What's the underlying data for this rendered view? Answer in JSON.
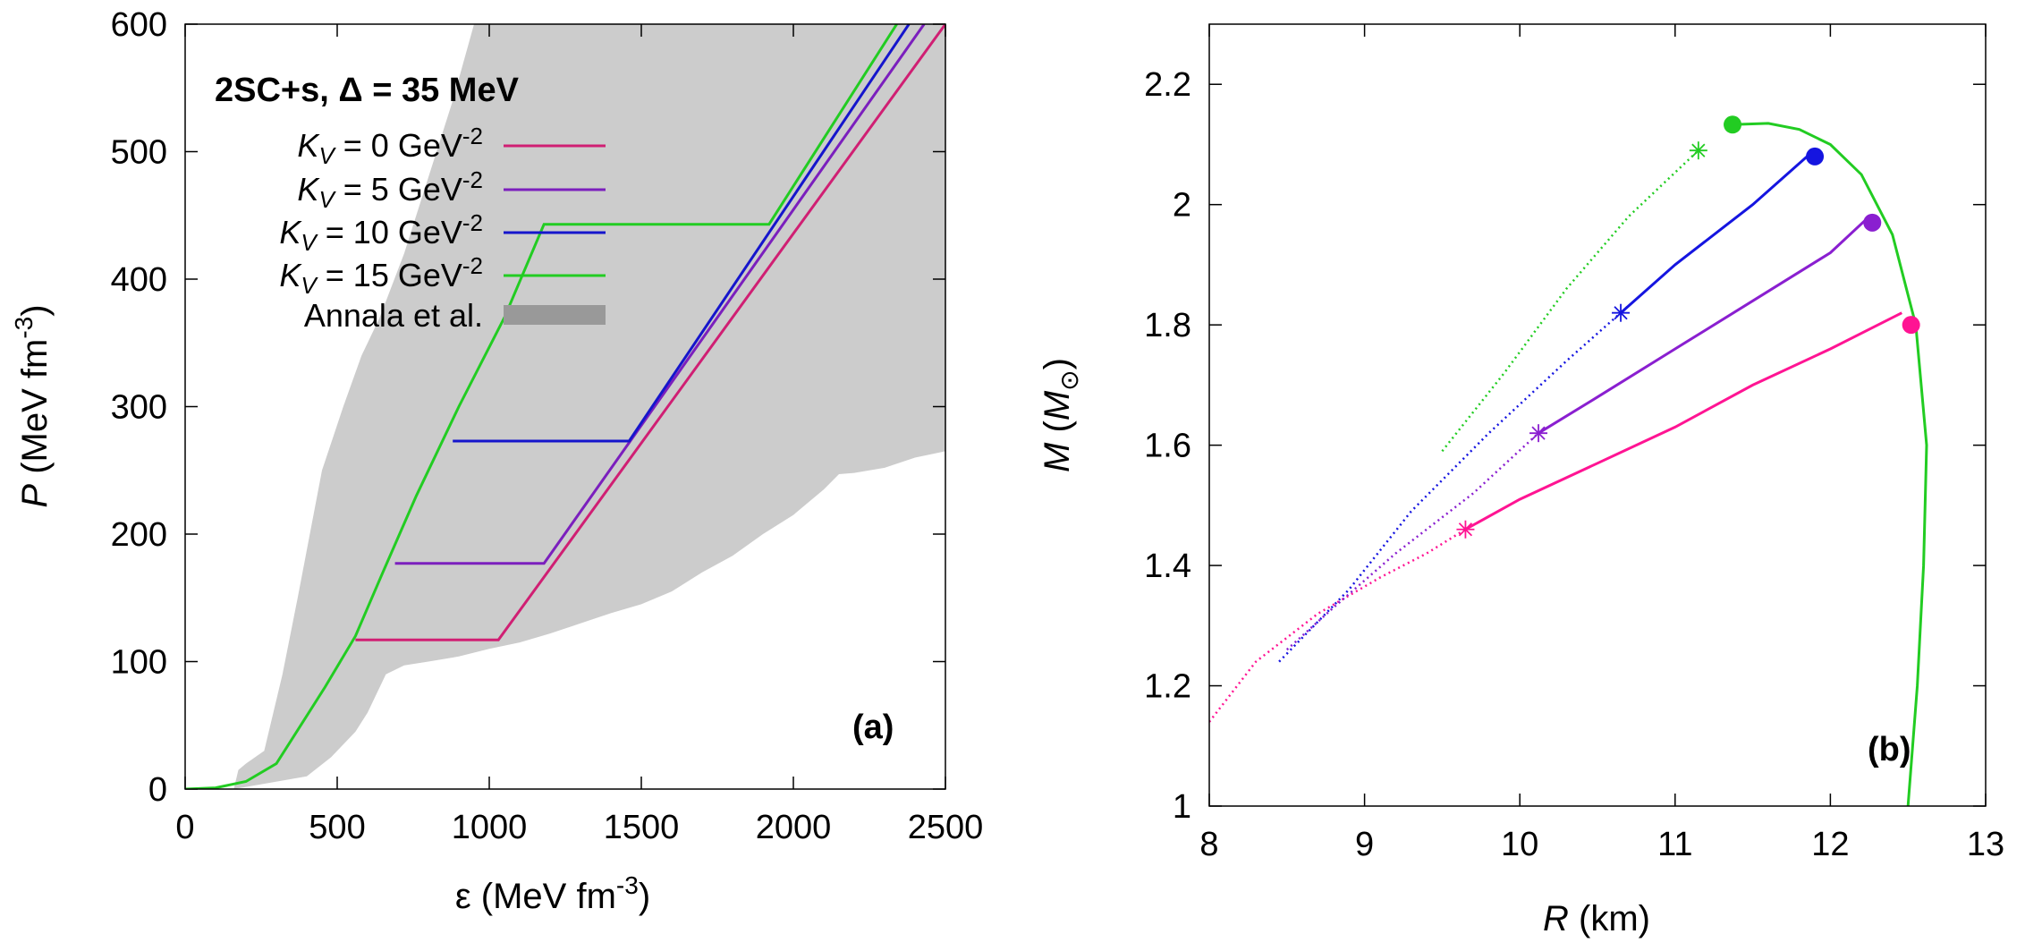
{
  "chart_data": [
    {
      "type": "line",
      "panel_label": "(a)",
      "title": "2SC+s,  Δ = 35 MeV",
      "xlabel": "ε (MeV fm-3)",
      "ylabel": "P (MeV fm-3)",
      "xlim": [
        0,
        2500
      ],
      "ylim": [
        0,
        600
      ],
      "xticks": [
        0,
        500,
        1000,
        1500,
        2000,
        2500
      ],
      "yticks": [
        0,
        100,
        200,
        300,
        400,
        500,
        600
      ],
      "band": {
        "name": "Annala et al.",
        "color": "#bbbbbb",
        "upper": [
          [
            160,
            0
          ],
          [
            175,
            15
          ],
          [
            200,
            20
          ],
          [
            260,
            30
          ],
          [
            290,
            60
          ],
          [
            320,
            90
          ],
          [
            370,
            150
          ],
          [
            410,
            200
          ],
          [
            450,
            250
          ],
          [
            520,
            300
          ],
          [
            580,
            340
          ],
          [
            640,
            370
          ],
          [
            720,
            420
          ],
          [
            800,
            480
          ],
          [
            880,
            540
          ],
          [
            950,
            600
          ]
        ],
        "lower": [
          [
            160,
            0
          ],
          [
            400,
            10
          ],
          [
            480,
            25
          ],
          [
            520,
            35
          ],
          [
            560,
            45
          ],
          [
            600,
            60
          ],
          [
            640,
            80
          ],
          [
            660,
            90
          ],
          [
            720,
            97
          ],
          [
            800,
            100
          ],
          [
            900,
            104
          ],
          [
            1000,
            110
          ],
          [
            1100,
            115
          ],
          [
            1200,
            122
          ],
          [
            1300,
            130
          ],
          [
            1400,
            138
          ],
          [
            1500,
            145
          ],
          [
            1600,
            155
          ],
          [
            1700,
            170
          ],
          [
            1800,
            183
          ],
          [
            1900,
            200
          ],
          [
            2000,
            215
          ],
          [
            2100,
            235
          ],
          [
            2150,
            247
          ],
          [
            2200,
            248
          ],
          [
            2300,
            252
          ],
          [
            2400,
            260
          ],
          [
            2500,
            265
          ]
        ]
      },
      "series": [
        {
          "name": "K_V = 0 GeV^-2",
          "color": "#d01f73",
          "points": [
            [
              560,
              117
            ],
            [
              1030,
              117
            ],
            [
              2500,
              600
            ]
          ]
        },
        {
          "name": "K_V = 5 GeV^-2",
          "color": "#7b1fbd",
          "points": [
            [
              690,
              177
            ],
            [
              1180,
              177
            ],
            [
              2430,
              600
            ]
          ]
        },
        {
          "name": "K_V = 10 GeV^-2",
          "color": "#1515cc",
          "points": [
            [
              880,
              273
            ],
            [
              1460,
              273
            ],
            [
              2380,
              600
            ]
          ]
        },
        {
          "name": "K_V = 15 GeV^-2",
          "color": "#22cc22",
          "points": [
            [
              0,
              0
            ],
            [
              100,
              1
            ],
            [
              200,
              6
            ],
            [
              300,
              20
            ],
            [
              380,
              50
            ],
            [
              460,
              80
            ],
            [
              560,
              120
            ],
            [
              650,
              170
            ],
            [
              760,
              230
            ],
            [
              900,
              300
            ],
            [
              1050,
              370
            ],
            [
              1180,
              443
            ],
            [
              1920,
              443
            ],
            [
              2340,
              600
            ]
          ]
        }
      ],
      "legend": [
        {
          "prefix": "K",
          "sub": "V",
          "mid": " = 0 GeV",
          "sup": "-2"
        },
        {
          "prefix": "K",
          "sub": "V",
          "mid": " = 5 GeV",
          "sup": "-2"
        },
        {
          "prefix": "K",
          "sub": "V",
          "mid": " = 10 GeV",
          "sup": "-2"
        },
        {
          "prefix": "K",
          "sub": "V",
          "mid": " = 15 GeV",
          "sup": "-2"
        },
        {
          "prefix": "Annala et al.",
          "sub": "",
          "mid": "",
          "sup": ""
        }
      ]
    },
    {
      "type": "line",
      "panel_label": "(b)",
      "xlabel": "R (km)",
      "ylabel": "M (M⊙)",
      "xlim": [
        8,
        13
      ],
      "ylim": [
        1,
        2.3
      ],
      "xticks": [
        8,
        9,
        10,
        11,
        12,
        13
      ],
      "yticks": [
        1,
        1.2,
        1.4,
        1.6,
        1.8,
        2,
        2.2
      ],
      "hadronic_branch": {
        "color": "#22cc22",
        "points": [
          [
            12.5,
            1.0
          ],
          [
            12.56,
            1.2
          ],
          [
            12.6,
            1.4
          ],
          [
            12.62,
            1.6
          ],
          [
            12.55,
            1.8
          ],
          [
            12.4,
            1.95
          ],
          [
            12.2,
            2.05
          ],
          [
            12.0,
            2.1
          ],
          [
            11.8,
            2.125
          ],
          [
            11.6,
            2.135
          ],
          [
            11.37,
            2.133
          ]
        ]
      },
      "series": [
        {
          "name": "K_V = 0",
          "color": "#ff1493",
          "solid": [
            [
              9.65,
              1.46
            ],
            [
              10.0,
              1.51
            ],
            [
              10.5,
              1.57
            ],
            [
              11.0,
              1.63
            ],
            [
              11.5,
              1.7
            ],
            [
              12.0,
              1.76
            ],
            [
              12.46,
              1.82
            ]
          ],
          "dotted": [
            [
              8.0,
              1.14
            ],
            [
              8.3,
              1.24
            ],
            [
              8.7,
              1.32
            ],
            [
              9.1,
              1.38
            ],
            [
              9.4,
              1.42
            ],
            [
              9.65,
              1.46
            ]
          ],
          "star": [
            9.65,
            1.46
          ],
          "dot": [
            12.52,
            1.8
          ]
        },
        {
          "name": "K_V = 5",
          "color": "#8a1fd0",
          "solid": [
            [
              10.12,
              1.62
            ],
            [
              10.5,
              1.68
            ],
            [
              11.0,
              1.76
            ],
            [
              11.5,
              1.84
            ],
            [
              12.0,
              1.92
            ],
            [
              12.25,
              1.98
            ]
          ],
          "dotted": [
            [
              8.5,
              1.26
            ],
            [
              8.8,
              1.33
            ],
            [
              9.2,
              1.42
            ],
            [
              9.7,
              1.52
            ],
            [
              10.12,
              1.62
            ]
          ],
          "star": [
            10.12,
            1.62
          ],
          "dot": [
            12.27,
            1.97
          ]
        },
        {
          "name": "K_V = 10",
          "color": "#1515e0",
          "solid": [
            [
              10.65,
              1.82
            ],
            [
              11.0,
              1.9
            ],
            [
              11.5,
              2.0
            ],
            [
              11.85,
              2.08
            ]
          ],
          "dotted": [
            [
              8.45,
              1.24
            ],
            [
              8.9,
              1.36
            ],
            [
              9.3,
              1.49
            ],
            [
              9.8,
              1.62
            ],
            [
              10.3,
              1.74
            ],
            [
              10.65,
              1.82
            ]
          ],
          "star": [
            10.65,
            1.82
          ],
          "dot": [
            11.9,
            2.08
          ]
        },
        {
          "name": "K_V = 15",
          "color": "#22cc22",
          "solid": [],
          "dotted": [
            [
              9.5,
              1.59
            ],
            [
              9.9,
              1.72
            ],
            [
              10.3,
              1.86
            ],
            [
              10.7,
              1.98
            ],
            [
              11.15,
              2.09
            ]
          ],
          "star": [
            11.15,
            2.09
          ],
          "dot": [
            11.37,
            2.133
          ]
        }
      ]
    }
  ]
}
